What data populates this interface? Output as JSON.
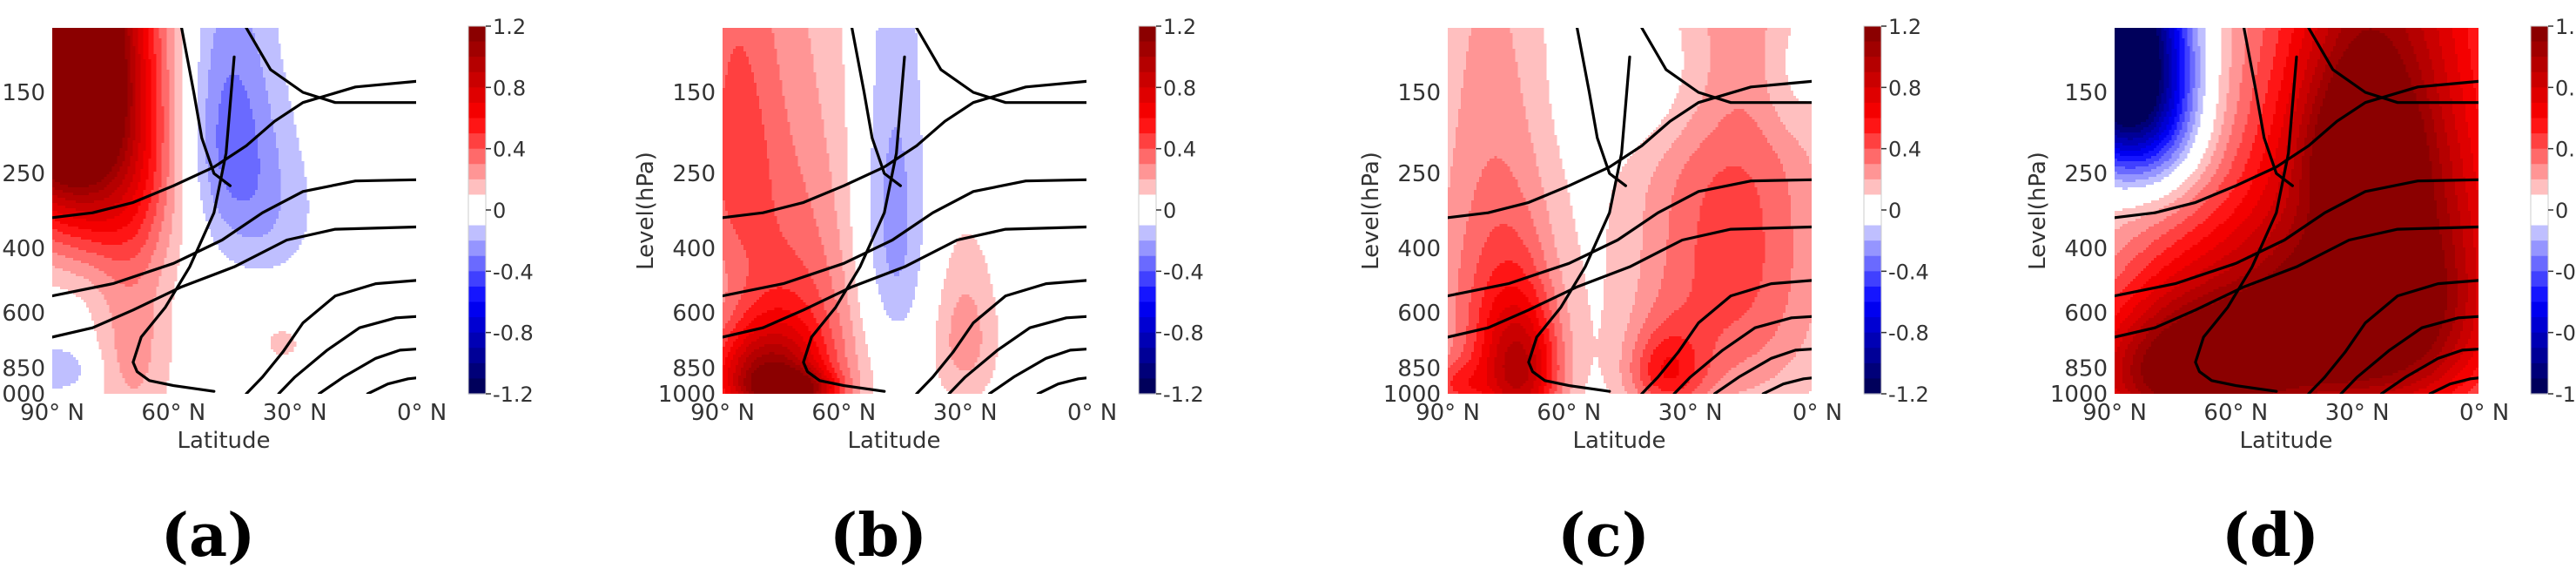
{
  "chart_data": {
    "type": "heatmap",
    "description_note": "Four latitude-pressure contour panels of a field anomaly (filled colors) with black climatology contours overlaid.",
    "shared": {
      "ylabel": "Level(hPa)",
      "xlabel": "Latitude",
      "yticks": [
        "150",
        "250",
        "400",
        "600",
        "850",
        "1000"
      ],
      "ytick_values": [
        150,
        250,
        400,
        600,
        850,
        1000
      ],
      "xticks": [
        "90° N",
        "60° N",
        "30° N",
        "0° N"
      ],
      "xtick_values": [
        90,
        60,
        30,
        0
      ],
      "xlim": [
        90,
        0
      ],
      "ylim": [
        100,
        1000
      ],
      "colorbar": {
        "ticks": [
          "1.2",
          "0.8",
          "0.4",
          "0",
          "-0.4",
          "-0.8",
          "-1.2"
        ],
        "tick_values": [
          1.2,
          0.8,
          0.4,
          0,
          -0.4,
          -0.8,
          -1.2
        ],
        "range": [
          -1.2,
          1.2
        ],
        "colormap": "seismic",
        "colors": {
          "max": "#800000",
          "high": "#ff0000",
          "zero": "#ffffff",
          "low": "#0000ff",
          "min": "#00004c"
        }
      }
    },
    "panels": [
      {
        "label": "(a)",
        "blobs": [
          {
            "lat": 88,
            "p": 110,
            "sx": 10,
            "sy": 90,
            "v": 1.6
          },
          {
            "lat": 82,
            "p": 200,
            "sx": 14,
            "sy": 150,
            "v": 0.9
          },
          {
            "lat": 70,
            "p": 700,
            "sx": 7,
            "sy": 400,
            "v": 0.25
          },
          {
            "lat": 47,
            "p": 180,
            "sx": 8,
            "sy": 110,
            "v": -0.32
          },
          {
            "lat": 38,
            "p": 320,
            "sx": 10,
            "sy": 120,
            "v": -0.18
          },
          {
            "lat": 88,
            "p": 860,
            "sx": 6,
            "sy": 90,
            "v": -0.2
          },
          {
            "lat": 33,
            "p": 730,
            "sx": 3,
            "sy": 50,
            "v": 0.18
          }
        ]
      },
      {
        "label": "(b)",
        "blobs": [
          {
            "lat": 80,
            "p": 900,
            "sx": 10,
            "sy": 200,
            "v": 0.8
          },
          {
            "lat": 72,
            "p": 650,
            "sx": 12,
            "sy": 450,
            "v": 0.4
          },
          {
            "lat": 88,
            "p": 200,
            "sx": 8,
            "sy": 180,
            "v": 0.35
          },
          {
            "lat": 30,
            "p": 700,
            "sx": 6,
            "sy": 250,
            "v": 0.25
          },
          {
            "lat": 48,
            "p": 350,
            "sx": 6,
            "sy": 260,
            "v": -0.28
          },
          {
            "lat": 72,
            "p": 980,
            "sx": 7,
            "sy": 80,
            "v": 0.6
          }
        ]
      },
      {
        "label": "(c)",
        "blobs": [
          {
            "lat": 72,
            "p": 880,
            "sx": 7,
            "sy": 280,
            "v": 0.75
          },
          {
            "lat": 80,
            "p": 550,
            "sx": 11,
            "sy": 450,
            "v": 0.35
          },
          {
            "lat": 20,
            "p": 400,
            "sx": 17,
            "sy": 450,
            "v": 0.45
          },
          {
            "lat": 36,
            "p": 880,
            "sx": 7,
            "sy": 170,
            "v": 0.45
          },
          {
            "lat": 35,
            "p": 130,
            "sx": 14,
            "sy": 60,
            "v": -0.2
          },
          {
            "lat": 5,
            "p": 130,
            "sx": 6,
            "sy": 50,
            "v": -0.15
          },
          {
            "lat": 88,
            "p": 950,
            "sx": 5,
            "sy": 100,
            "v": 0.3
          }
        ]
      },
      {
        "label": "(d)",
        "blobs": [
          {
            "lat": 20,
            "p": 500,
            "sx": 20,
            "sy": 450,
            "v": 1.25
          },
          {
            "lat": 75,
            "p": 880,
            "sx": 18,
            "sy": 300,
            "v": 1.05
          },
          {
            "lat": 50,
            "p": 700,
            "sx": 20,
            "sy": 350,
            "v": 0.7
          },
          {
            "lat": 88,
            "p": 120,
            "sx": 10,
            "sy": 70,
            "v": -1.4
          },
          {
            "lat": 80,
            "p": 180,
            "sx": 10,
            "sy": 80,
            "v": -0.4
          },
          {
            "lat": 30,
            "p": 200,
            "sx": 10,
            "sy": 80,
            "v": 0.5
          }
        ]
      }
    ],
    "contour_lines": [
      [
        [
          90,
          330
        ],
        [
          80,
          320
        ],
        [
          70,
          300
        ],
        [
          60,
          270
        ],
        [
          50,
          240
        ],
        [
          42,
          210
        ],
        [
          35,
          180
        ],
        [
          28,
          160
        ],
        [
          15,
          145
        ],
        [
          0,
          140
        ]
      ],
      [
        [
          90,
          540
        ],
        [
          75,
          500
        ],
        [
          60,
          440
        ],
        [
          48,
          380
        ],
        [
          38,
          320
        ],
        [
          28,
          280
        ],
        [
          15,
          262
        ],
        [
          0,
          260
        ]
      ],
      [
        [
          90,
          700
        ],
        [
          80,
          660
        ],
        [
          70,
          590
        ],
        [
          58,
          510
        ],
        [
          45,
          450
        ],
        [
          32,
          380
        ],
        [
          20,
          355
        ],
        [
          0,
          350
        ]
      ],
      [
        [
          45,
          120
        ],
        [
          47,
          220
        ],
        [
          50,
          320
        ],
        [
          56,
          450
        ],
        [
          62,
          580
        ],
        [
          68,
          700
        ],
        [
          70,
          820
        ],
        [
          69,
          870
        ],
        [
          66,
          920
        ],
        [
          60,
          950
        ],
        [
          50,
          985
        ]
      ],
      [
        [
          42,
          1000
        ],
        [
          38,
          900
        ],
        [
          33,
          770
        ],
        [
          28,
          640
        ],
        [
          20,
          540
        ],
        [
          10,
          500
        ],
        [
          0,
          490
        ]
      ],
      [
        [
          34,
          1000
        ],
        [
          30,
          900
        ],
        [
          22,
          760
        ],
        [
          14,
          660
        ],
        [
          5,
          620
        ],
        [
          0,
          615
        ]
      ],
      [
        [
          24,
          1000
        ],
        [
          18,
          900
        ],
        [
          10,
          800
        ],
        [
          4,
          760
        ],
        [
          0,
          755
        ]
      ],
      [
        [
          12,
          1000
        ],
        [
          7,
          940
        ],
        [
          2,
          910
        ],
        [
          0,
          905
        ]
      ],
      [
        [
          58,
          100
        ],
        [
          55,
          150
        ],
        [
          53,
          200
        ],
        [
          50,
          250
        ],
        [
          46,
          270
        ]
      ],
      [
        [
          42,
          100
        ],
        [
          36,
          130
        ],
        [
          28,
          150
        ],
        [
          20,
          160
        ],
        [
          0,
          160
        ]
      ]
    ]
  }
}
